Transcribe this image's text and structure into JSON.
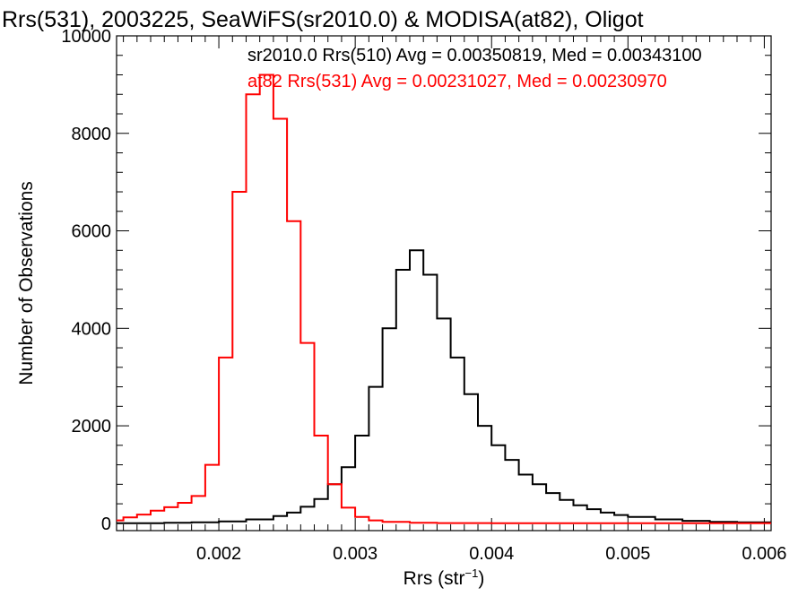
{
  "chart_data": {
    "type": "line",
    "title": "Rrs(531), 2003225, SeaWiFS(sr2010.0) & MODISA(at82), Oligot",
    "xlabel_main": "Rrs (str",
    "xlabel_sup": "−1",
    "xlabel_tail": ")",
    "ylabel": "Number of Observations",
    "xlim": [
      0.00125,
      0.00605
    ],
    "ylim": [
      -150,
      10000
    ],
    "x_ticks": [
      0.002,
      0.003,
      0.004,
      0.005,
      0.006
    ],
    "x_tick_labels": [
      "0.002",
      "0.003",
      "0.004",
      "0.005",
      "0.006"
    ],
    "y_ticks": [
      0,
      2000,
      4000,
      6000,
      8000,
      10000
    ],
    "y_tick_labels": [
      "0",
      "2000",
      "4000",
      "6000",
      "8000",
      "10000"
    ],
    "grid": false,
    "annotations": [
      {
        "text": "sr2010.0 Rrs(510) Avg = 0.00350819, Med = 0.00343100",
        "color": "#000000"
      },
      {
        "text": "at82 Rrs(531) Avg = 0.00231027, Med = 0.00230970",
        "color": "#ff0000"
      }
    ],
    "series": [
      {
        "color": "#000000",
        "x": [
          0.00125,
          0.0014,
          0.0016,
          0.0018,
          0.002,
          0.0022,
          0.0024,
          0.0025,
          0.0026,
          0.0027,
          0.0028,
          0.0029,
          0.003,
          0.0031,
          0.0032,
          0.0033,
          0.0034,
          0.0035,
          0.0036,
          0.0037,
          0.0038,
          0.0039,
          0.004,
          0.0041,
          0.0042,
          0.0043,
          0.0044,
          0.0045,
          0.0046,
          0.0047,
          0.0048,
          0.0049,
          0.005,
          0.0052,
          0.0054,
          0.0056,
          0.0058,
          0.00605
        ],
        "values": [
          0,
          0,
          10,
          20,
          40,
          80,
          150,
          220,
          340,
          500,
          800,
          1150,
          1800,
          2800,
          4000,
          5200,
          5600,
          5100,
          4200,
          3400,
          2650,
          2000,
          1600,
          1300,
          1000,
          800,
          620,
          480,
          370,
          290,
          220,
          170,
          130,
          80,
          50,
          30,
          20,
          10
        ]
      },
      {
        "color": "#ff0000",
        "x": [
          0.00125,
          0.0013,
          0.0014,
          0.0015,
          0.0016,
          0.0017,
          0.0018,
          0.0019,
          0.002,
          0.0021,
          0.0022,
          0.0023,
          0.0024,
          0.0025,
          0.0026,
          0.0027,
          0.0028,
          0.0029,
          0.003,
          0.0031,
          0.0032,
          0.0034,
          0.0036,
          0.004,
          0.005,
          0.00605
        ],
        "values": [
          60,
          120,
          180,
          260,
          330,
          420,
          560,
          1200,
          3400,
          6800,
          8800,
          9200,
          8300,
          6200,
          3700,
          1800,
          800,
          320,
          130,
          60,
          30,
          10,
          5,
          0,
          0,
          0
        ]
      }
    ]
  }
}
